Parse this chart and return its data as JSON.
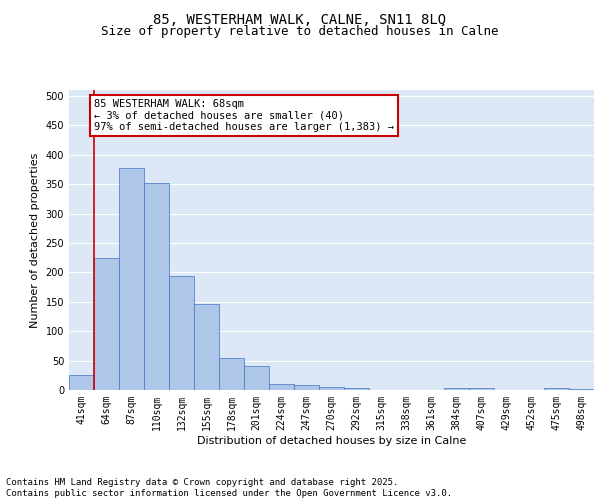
{
  "title_line1": "85, WESTERHAM WALK, CALNE, SN11 8LQ",
  "title_line2": "Size of property relative to detached houses in Calne",
  "xlabel": "Distribution of detached houses by size in Calne",
  "ylabel": "Number of detached properties",
  "categories": [
    "41sqm",
    "64sqm",
    "87sqm",
    "110sqm",
    "132sqm",
    "155sqm",
    "178sqm",
    "201sqm",
    "224sqm",
    "247sqm",
    "270sqm",
    "292sqm",
    "315sqm",
    "338sqm",
    "361sqm",
    "384sqm",
    "407sqm",
    "429sqm",
    "452sqm",
    "475sqm",
    "498sqm"
  ],
  "values": [
    25,
    225,
    378,
    352,
    193,
    147,
    55,
    40,
    11,
    8,
    5,
    3,
    0,
    0,
    0,
    3,
    3,
    0,
    0,
    3,
    2
  ],
  "bar_color": "#aec6e8",
  "bar_edge_color": "#4472c4",
  "vline_x": 0.5,
  "vline_color": "#cc0000",
  "annotation_text": "85 WESTERHAM WALK: 68sqm\n← 3% of detached houses are smaller (40)\n97% of semi-detached houses are larger (1,383) →",
  "annotation_box_color": "#cc0000",
  "ylim": [
    0,
    510
  ],
  "yticks": [
    0,
    50,
    100,
    150,
    200,
    250,
    300,
    350,
    400,
    450,
    500
  ],
  "footnote": "Contains HM Land Registry data © Crown copyright and database right 2025.\nContains public sector information licensed under the Open Government Licence v3.0.",
  "background_color": "#dce8f5",
  "grid_color": "#ffffff",
  "title_fontsize": 10,
  "subtitle_fontsize": 9,
  "axis_label_fontsize": 8,
  "tick_fontsize": 7,
  "annotation_fontsize": 7.5,
  "footnote_fontsize": 6.5
}
